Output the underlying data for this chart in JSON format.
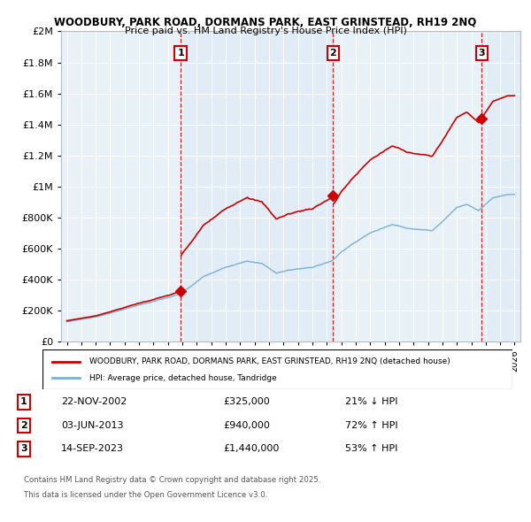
{
  "title1": "WOODBURY, PARK ROAD, DORMANS PARK, EAST GRINSTEAD, RH19 2NQ",
  "title2": "Price paid vs. HM Land Registry's House Price Index (HPI)",
  "legend_property": "WOODBURY, PARK ROAD, DORMANS PARK, EAST GRINSTEAD, RH19 2NQ (detached house)",
  "legend_hpi": "HPI: Average price, detached house, Tandridge",
  "footer1": "Contains HM Land Registry data © Crown copyright and database right 2025.",
  "footer2": "This data is licensed under the Open Government Licence v3.0.",
  "sales": [
    {
      "num": 1,
      "date": "22-NOV-2002",
      "price": 325000,
      "pct": "21%",
      "dir": "↓"
    },
    {
      "num": 2,
      "date": "03-JUN-2013",
      "price": 940000,
      "pct": "72%",
      "dir": "↑"
    },
    {
      "num": 3,
      "date": "14-SEP-2023",
      "price": 1440000,
      "pct": "53%",
      "dir": "↑"
    }
  ],
  "sale_years": [
    2002.88,
    2013.42,
    2023.71
  ],
  "sale_prices": [
    325000,
    940000,
    1440000
  ],
  "property_color": "#cc0000",
  "hpi_color": "#7ab0d4",
  "band_color": "#dce8f5",
  "ylim": [
    0,
    2000000
  ],
  "yticks": [
    0,
    200000,
    400000,
    600000,
    800000,
    1000000,
    1200000,
    1400000,
    1600000,
    1800000,
    2000000
  ],
  "xlim_start": 1994.6,
  "xlim_end": 2026.4,
  "background_color": "#ffffff",
  "plot_bg_color": "#e8f0f8"
}
